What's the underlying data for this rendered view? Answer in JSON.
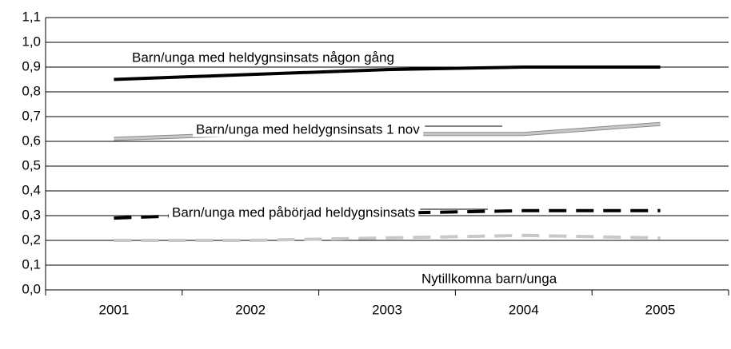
{
  "chart_data": {
    "type": "line",
    "categories": [
      "2001",
      "2002",
      "2003",
      "2004",
      "2005"
    ],
    "series": [
      {
        "name": "Barn/unga med heldygnsinsats någon gång",
        "color": "#000000",
        "style": "solid",
        "values": [
          0.85,
          0.87,
          0.89,
          0.9,
          0.9
        ]
      },
      {
        "name": "Barn/unga med heldygnsinsats 1 nov",
        "color": "#c8c8c8",
        "style": "solid",
        "values": [
          0.61,
          0.63,
          0.63,
          0.63,
          0.67
        ]
      },
      {
        "name": "Barn/unga med påbörjad heldygnsinsats",
        "color": "#000000",
        "style": "dashed",
        "values": [
          0.29,
          0.31,
          0.31,
          0.32,
          0.32
        ]
      },
      {
        "name": "Nytillkomna barn/unga",
        "color": "#c8c8c8",
        "style": "dashed",
        "values": [
          0.2,
          0.2,
          0.21,
          0.22,
          0.21
        ]
      }
    ],
    "ylim": [
      0,
      1.1
    ],
    "yticks": [
      {
        "value": 0,
        "label": "0,0"
      },
      {
        "value": 0.1,
        "label": "0,1"
      },
      {
        "value": 0.2,
        "label": "0,2"
      },
      {
        "value": 0.3,
        "label": "0,3"
      },
      {
        "value": 0.4,
        "label": "0,4"
      },
      {
        "value": 0.5,
        "label": "0,5"
      },
      {
        "value": 0.6,
        "label": "0,6"
      },
      {
        "value": 0.7,
        "label": "0,7"
      },
      {
        "value": 0.8,
        "label": "0,8"
      },
      {
        "value": 0.9,
        "label": "0,9"
      },
      {
        "value": 1.0,
        "label": "1,0"
      },
      {
        "value": 1.1,
        "label": "1,1"
      }
    ],
    "grid": true
  }
}
